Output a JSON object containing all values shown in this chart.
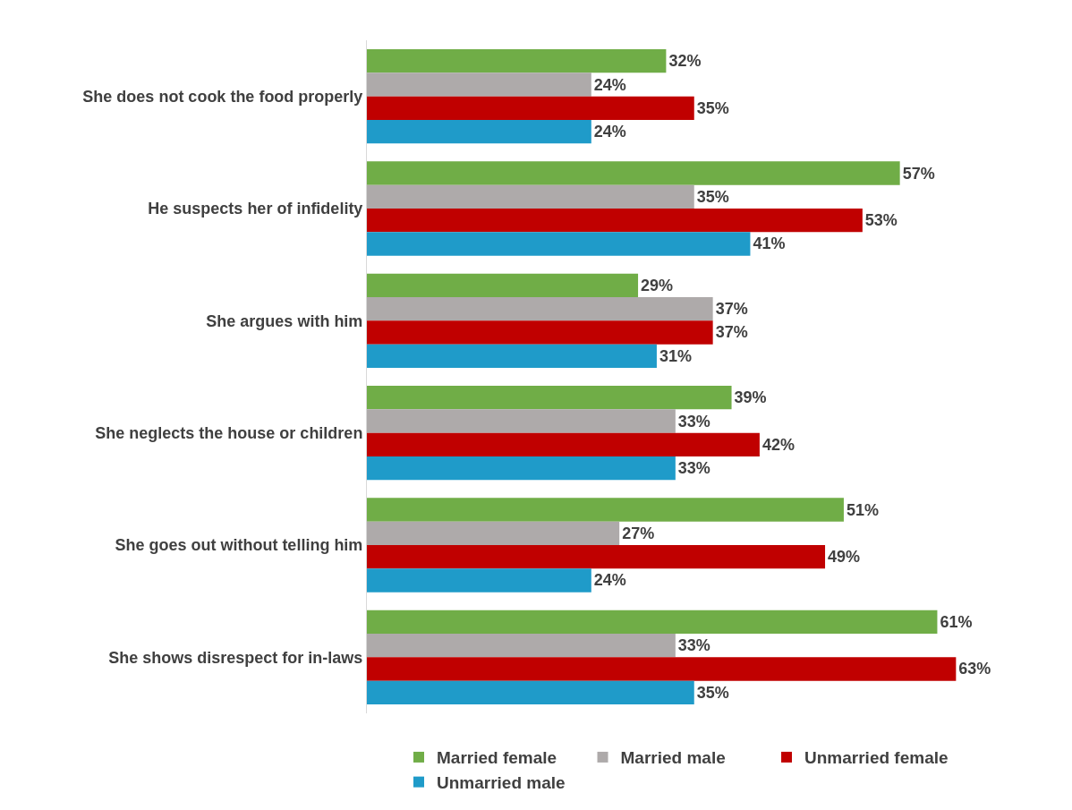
{
  "chart_data": {
    "type": "bar",
    "orientation": "horizontal",
    "categories": [
      "She does not cook the food properly",
      "He suspects her of infidelity",
      "She argues with him",
      "She neglects the house or children",
      "She goes out without telling him",
      "She shows disrespect for in-laws"
    ],
    "series": [
      {
        "name": "Married female",
        "color": "#70ad47",
        "values": [
          32,
          57,
          29,
          39,
          51,
          61
        ],
        "value_labels": [
          "32%",
          "57%",
          "29%",
          "39%",
          "51%",
          "61%"
        ]
      },
      {
        "name": "Married male",
        "color": "#aeaaaa",
        "values": [
          24,
          35,
          37,
          33,
          27,
          33
        ],
        "value_labels": [
          "24%",
          "35%",
          "37%",
          "33%",
          "27%",
          "33%"
        ]
      },
      {
        "name": "Unmarried female",
        "color": "#c00000",
        "values": [
          35,
          53,
          37,
          42,
          49,
          63
        ],
        "value_labels": [
          "35%",
          "53%",
          "37%",
          "42%",
          "49%",
          "63%"
        ]
      },
      {
        "name": "Unmarried male",
        "color": "#1f9bc9",
        "values": [
          24,
          41,
          31,
          33,
          24,
          35
        ],
        "value_labels": [
          "24%",
          "41%",
          "31%",
          "33%",
          "24%",
          "35%"
        ]
      }
    ],
    "legend": "bottom",
    "grid": false
  }
}
